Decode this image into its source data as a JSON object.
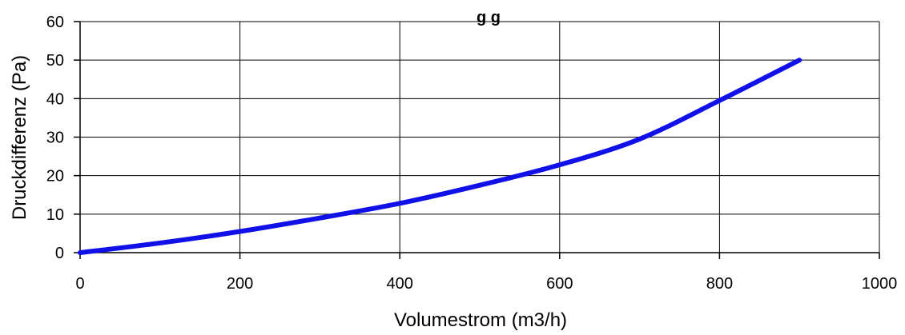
{
  "chart_data": {
    "type": "line",
    "title": "g g",
    "xlabel": "Volumestrom (m3/h)",
    "ylabel": "Druckdifferenz (Pa)",
    "xlim": [
      0,
      1000
    ],
    "ylim": [
      0,
      60
    ],
    "x_ticks": [
      0,
      200,
      400,
      600,
      800,
      1000
    ],
    "y_ticks": [
      0,
      10,
      20,
      30,
      40,
      50,
      60
    ],
    "x_tick_labels": [
      "0",
      "200",
      "400",
      "600",
      "800",
      "1000"
    ],
    "y_tick_labels": [
      "0",
      "10",
      "20",
      "30",
      "40",
      "50",
      "60"
    ],
    "grid": true,
    "series": [
      {
        "color": "#1010e8",
        "x": [
          0,
          100,
          200,
          300,
          400,
          500,
          600,
          700,
          800,
          900
        ],
        "y": [
          0,
          2.5,
          5.5,
          9,
          12.8,
          17.5,
          22.8,
          29.5,
          39.5,
          50
        ]
      }
    ]
  }
}
